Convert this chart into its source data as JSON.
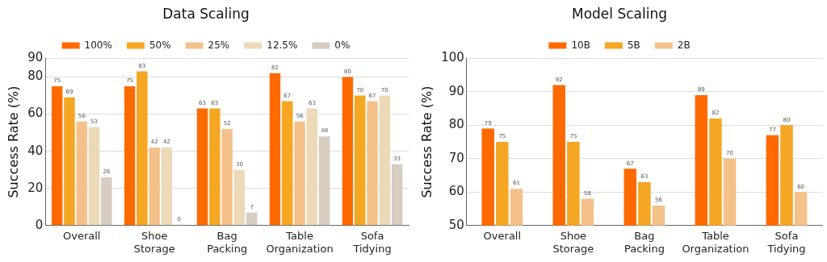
{
  "chart_data": [
    {
      "type": "bar",
      "title": "Data Scaling",
      "ylabel": "Success Rate (%)",
      "categories": [
        "Overall",
        "Shoe Storage",
        "Bag Packing",
        "Table Organization",
        "Sofa Tidying"
      ],
      "series": [
        {
          "name": "100%",
          "color": "#ff6a00",
          "values": [
            75,
            75,
            63,
            82,
            80
          ]
        },
        {
          "name": "50%",
          "color": "#f5a623",
          "values": [
            69,
            83,
            63,
            67,
            70
          ]
        },
        {
          "name": "25%",
          "color": "#f5c18a",
          "values": [
            56,
            42,
            52,
            56,
            67
          ]
        },
        {
          "name": "12.5%",
          "color": "#ecd9b8",
          "values": [
            53,
            42,
            30,
            63,
            70
          ]
        },
        {
          "name": "0%",
          "color": "#d6ccc0",
          "values": [
            26,
            0,
            7,
            48,
            33
          ]
        }
      ],
      "ylim": [
        0,
        90
      ],
      "yticks": [
        0,
        20,
        40,
        60,
        80,
        90
      ],
      "grid": "y",
      "legend": "top",
      "data_labels": true
    },
    {
      "type": "bar",
      "title": "Model Scaling",
      "ylabel": "Success Rate (%)",
      "categories": [
        "Overall",
        "Shoe Storage",
        "Bag Packing",
        "Table Organization",
        "Sofa Tidying"
      ],
      "series": [
        {
          "name": "10B",
          "color": "#ff6a00",
          "values": [
            79,
            92,
            67,
            89,
            77
          ]
        },
        {
          "name": "5B",
          "color": "#f5a623",
          "values": [
            75,
            75,
            63,
            82,
            80
          ]
        },
        {
          "name": "2B",
          "color": "#f5c18a",
          "values": [
            61,
            58,
            56,
            70,
            60
          ]
        }
      ],
      "ylim": [
        50,
        100
      ],
      "yticks": [
        50,
        60,
        70,
        80,
        90,
        100
      ],
      "grid": "y",
      "legend": "top",
      "data_labels": true
    }
  ]
}
